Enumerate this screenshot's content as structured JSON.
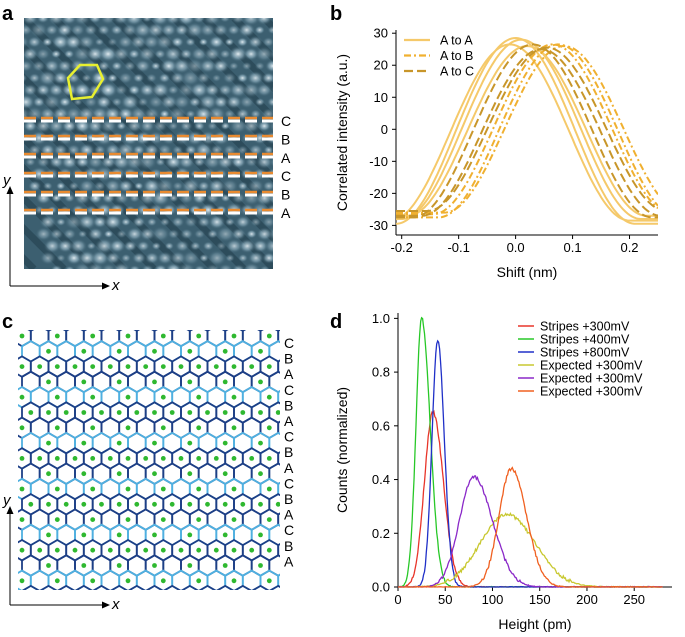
{
  "figure": {
    "panel_labels": [
      "a",
      "b",
      "c",
      "d"
    ],
    "x_axis_symbol": "x",
    "y_axis_symbol": "y",
    "layer_labels_a": [
      "C",
      "B",
      "A",
      "C",
      "B",
      "A"
    ],
    "layer_labels_c": [
      "C",
      "B",
      "A",
      "C",
      "B",
      "A",
      "C",
      "B",
      "A",
      "C",
      "B",
      "A",
      "C",
      "B",
      "A"
    ],
    "colors": {
      "stm_background": "#3c5f70",
      "hexagon": "#e8f030",
      "dashed_orange": "#e88a30",
      "dashed_white": "#ffffff",
      "lattice_dark": "#1d3f86",
      "lattice_light": "#4fb0e0",
      "lattice_dot": "#2fb830"
    }
  },
  "chart_data": [
    {
      "panel": "b",
      "type": "line",
      "title": "",
      "xlabel": "Shift (nm)",
      "ylabel": "Correlated intensity (a.u.)",
      "xlim": [
        -0.21,
        0.25
      ],
      "ylim": [
        -33,
        31
      ],
      "xticks": [
        "-0.2",
        "-0.1",
        "0.0",
        "0.1",
        "0.2"
      ],
      "yticks": [
        "30",
        "20",
        "10",
        "0",
        "-10",
        "-20",
        "-30"
      ],
      "legend": [
        "A to A",
        "A to B",
        "A to C"
      ],
      "series": [
        {
          "name": "A to A",
          "color": "#f5c96a",
          "dash": "solid",
          "curves": [
            {
              "center": 0.0,
              "amp": 29,
              "offset": -0.5
            },
            {
              "center": 0.01,
              "amp": 28,
              "offset": 0
            },
            {
              "center": -0.01,
              "amp": 27.5,
              "offset": -1
            },
            {
              "center": 0.02,
              "amp": 26.5,
              "offset": -0.5
            }
          ]
        },
        {
          "name": "A to B",
          "color": "#f0b030",
          "dash": "dashdot",
          "curves": [
            {
              "center": 0.065,
              "amp": 26.5,
              "offset": 0
            },
            {
              "center": 0.075,
              "amp": 27,
              "offset": -0.5
            },
            {
              "center": 0.085,
              "amp": 26,
              "offset": 0
            }
          ]
        },
        {
          "name": "A to C",
          "color": "#c8962a",
          "dash": "dashed",
          "curves": [
            {
              "center": 0.03,
              "amp": 27,
              "offset": -0.5
            },
            {
              "center": 0.045,
              "amp": 26,
              "offset": -1
            },
            {
              "center": 0.055,
              "amp": 25.5,
              "offset": 0
            }
          ]
        }
      ]
    },
    {
      "panel": "d",
      "type": "line",
      "title": "",
      "xlabel": "Height (pm)",
      "ylabel": "Counts (normalized)",
      "xlim": [
        0,
        290
      ],
      "ylim": [
        0,
        1.02
      ],
      "xticks": [
        "0",
        "50",
        "100",
        "150",
        "200",
        "250"
      ],
      "yticks": [
        "1.0",
        "0.8",
        "0.6",
        "0.4",
        "0.2",
        "0.0"
      ],
      "series": [
        {
          "name": "Stripes +300mV",
          "color": "#e8352a",
          "peak": 37,
          "height": 0.65,
          "width_left": 9,
          "width_right": 11
        },
        {
          "name": "Stripes +400mV",
          "color": "#28c828",
          "peak": 25,
          "height": 1.0,
          "width_left": 6,
          "width_right": 9
        },
        {
          "name": "Stripes +800mV",
          "color": "#2030c8",
          "peak": 42,
          "height": 0.92,
          "width_left": 6,
          "width_right": 7
        },
        {
          "name": "Expected +300mV",
          "color": "#c8c830",
          "peak": 115,
          "height": 0.27,
          "width_left": 28,
          "width_right": 30
        },
        {
          "name": "Expected +300mV",
          "color": "#8a28c8",
          "peak": 80,
          "height": 0.41,
          "width_left": 15,
          "width_right": 20
        },
        {
          "name": "Expected +300mV",
          "color": "#f06020",
          "peak": 120,
          "height": 0.44,
          "width_left": 13,
          "width_right": 16
        }
      ]
    }
  ]
}
